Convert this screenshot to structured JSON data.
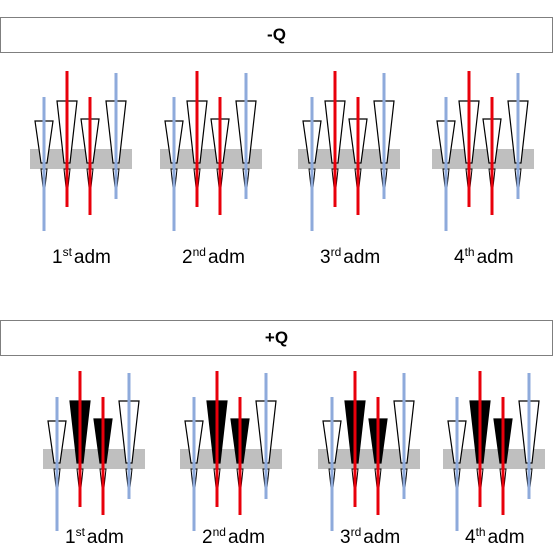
{
  "panels": [
    {
      "title": "-Q",
      "groups": [
        {
          "ordinal": "1",
          "suffix": "st",
          "word": "adm",
          "filled": [
            false,
            false,
            false,
            false
          ]
        },
        {
          "ordinal": "2",
          "suffix": "nd",
          "word": "adm",
          "filled": [
            false,
            false,
            false,
            false
          ]
        },
        {
          "ordinal": "3",
          "suffix": "rd",
          "word": "adm",
          "filled": [
            false,
            false,
            false,
            false
          ]
        },
        {
          "ordinal": "4",
          "suffix": "th",
          "word": "adm",
          "filled": [
            false,
            false,
            false,
            false
          ]
        }
      ]
    },
    {
      "title": "+Q",
      "groups": [
        {
          "ordinal": "1",
          "suffix": "st",
          "word": "adm",
          "filled": [
            false,
            true,
            true,
            false
          ]
        },
        {
          "ordinal": "2",
          "suffix": "nd",
          "word": "adm",
          "filled": [
            false,
            true,
            true,
            false
          ]
        },
        {
          "ordinal": "3",
          "suffix": "rd",
          "word": "adm",
          "filled": [
            false,
            true,
            true,
            false
          ]
        },
        {
          "ordinal": "4",
          "suffix": "th",
          "word": "adm",
          "filled": [
            false,
            true,
            true,
            false
          ]
        }
      ]
    }
  ],
  "colors": {
    "blue_line": "#8eaadb",
    "red_line": "#e8000b",
    "membrane": "#bfbfbf",
    "cone_outline": "#000000",
    "cone_fill": "#000000"
  }
}
